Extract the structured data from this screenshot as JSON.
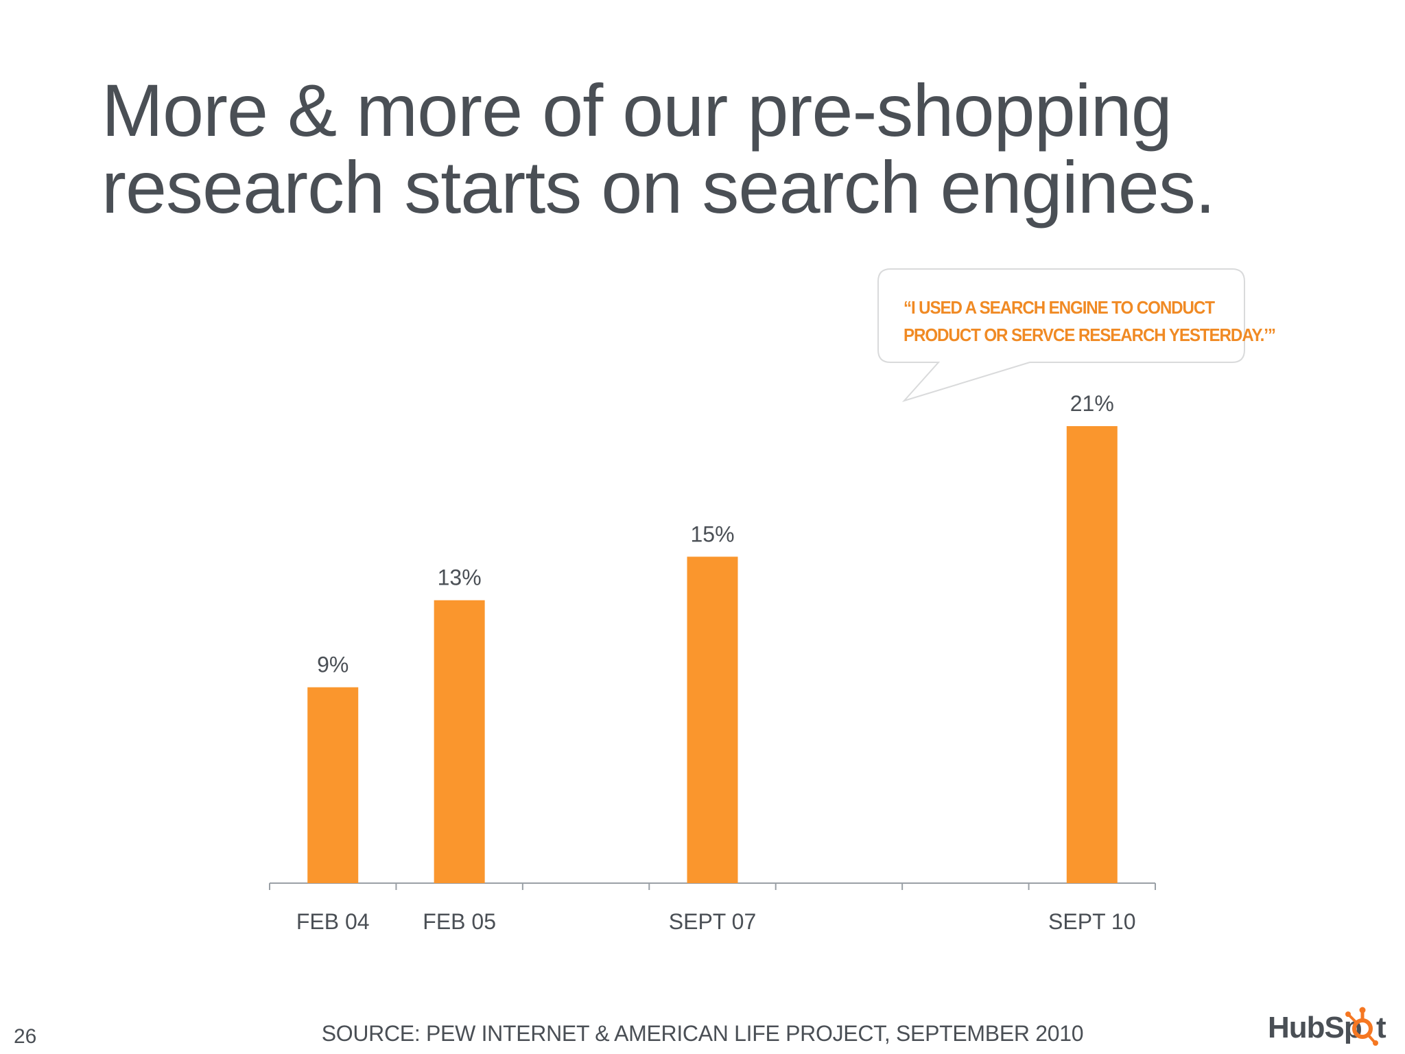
{
  "slide": {
    "title_lines": [
      "More & more of our pre-shopping",
      "research starts on search engines."
    ],
    "callout_lines": [
      "“I USED A SEARCH ENGINE TO CONDUCT",
      "PRODUCT OR SERVCE RESEARCH YESTERDAY.’”"
    ],
    "page_number": "26",
    "source": "SOURCE: PEW INTERNET & AMERICAN LIFE PROJECT, SEPTEMBER 2010",
    "logo_text": [
      "HubSp",
      "t"
    ],
    "logo_icon": "sprocket-icon"
  },
  "colors": {
    "bar": "#fa962d",
    "title": "#4a4f55",
    "callout_text": "#f08a24",
    "axis": "#9aa0a6"
  },
  "chart_data": {
    "type": "bar",
    "x_slots": [
      "FEB 04",
      "FEB 05",
      "",
      "SEPT 07",
      "",
      "",
      "SEPT 10"
    ],
    "categories": [
      "FEB 04",
      "FEB 05",
      "SEPT 07",
      "SEPT 10"
    ],
    "values": [
      9,
      13,
      15,
      21
    ],
    "value_labels": [
      "9%",
      "13%",
      "15%",
      "21%"
    ],
    "ylim": [
      0,
      21
    ],
    "grid": false,
    "legend": "none"
  }
}
